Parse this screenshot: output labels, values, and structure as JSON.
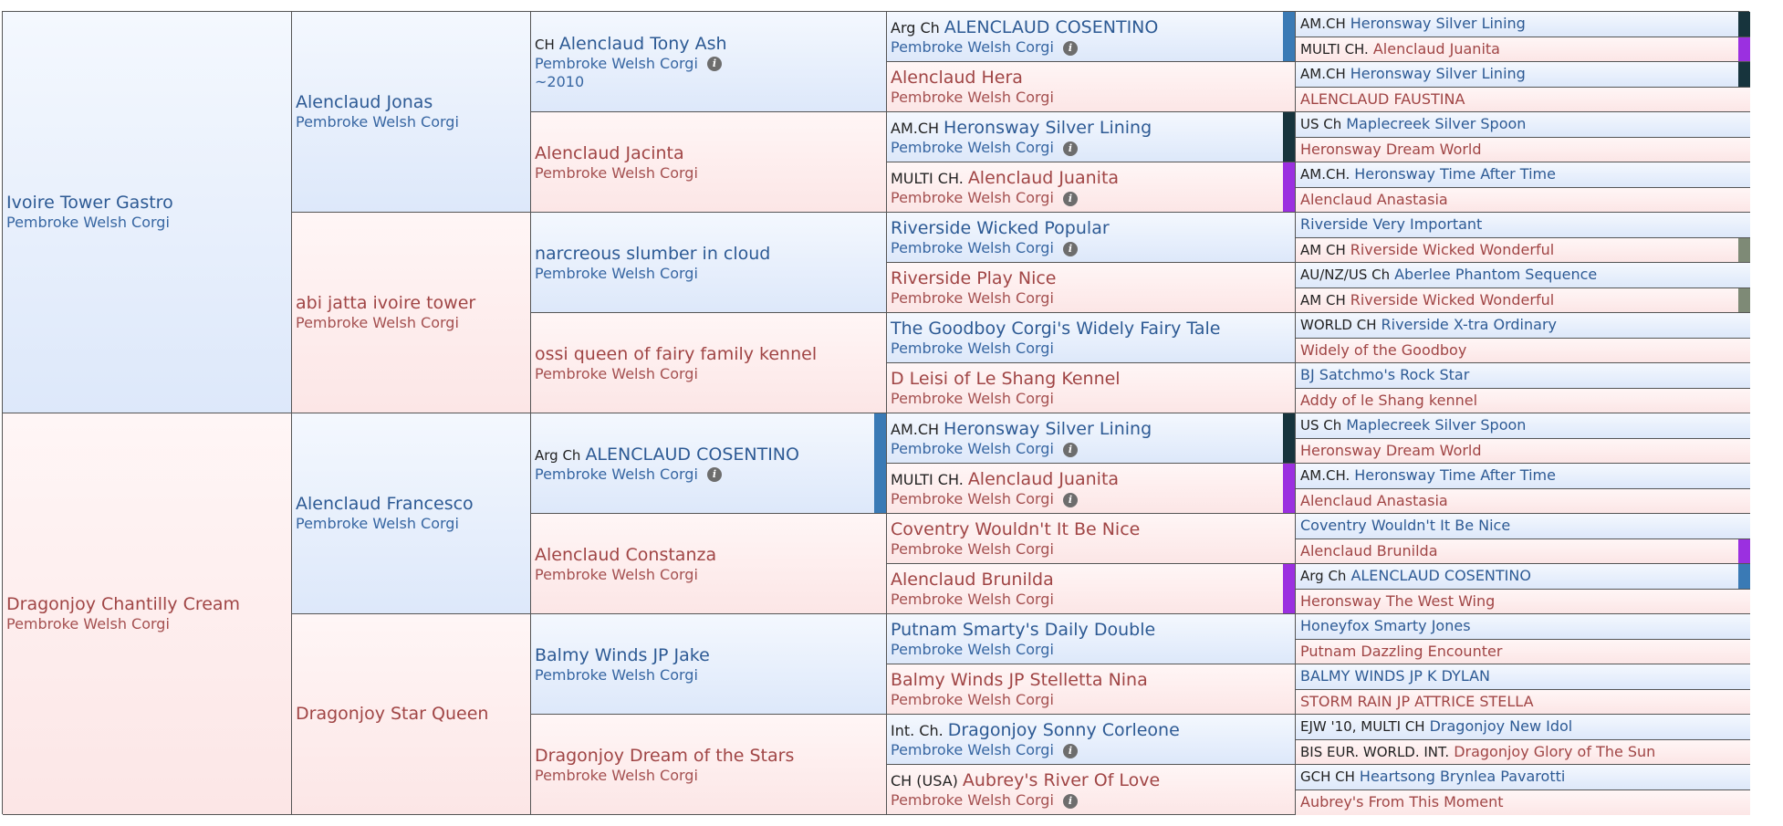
{
  "colors": {
    "male_text": "#2d5a94",
    "female_text": "#a04545",
    "male_bg": "#dde8fa",
    "female_bg": "#fce6e6",
    "mark_blue": "#3a7ab5",
    "mark_dark": "#17343d",
    "mark_purple": "#9b30e0",
    "mark_gray": "#7e8a76"
  },
  "gen1": [
    {
      "name": "Ivoire Tower Gastro",
      "breed": "Pembroke Welsh Corgi"
    },
    {
      "name": "Dragonjoy Chantilly Cream",
      "breed": "Pembroke Welsh Corgi"
    }
  ],
  "gen2": [
    {
      "name": "Alenclaud Jonas",
      "breed": "Pembroke Welsh Corgi"
    },
    {
      "name": "abi jatta ivoire tower",
      "breed": "Pembroke Welsh Corgi"
    },
    {
      "name": "Alenclaud Francesco",
      "breed": "Pembroke Welsh Corgi"
    },
    {
      "name": "Dragonjoy Star Queen",
      "breed": ""
    }
  ],
  "gen3": [
    {
      "title": "CH",
      "name": "Alenclaud Tony Ash",
      "breed": "Pembroke Welsh Corgi",
      "year": "~2010"
    },
    {
      "title": "",
      "name": "Alenclaud Jacinta",
      "breed": "Pembroke Welsh Corgi"
    },
    {
      "title": "",
      "name": "narcreous slumber in cloud",
      "breed": "Pembroke Welsh Corgi"
    },
    {
      "title": "",
      "name": "ossi queen of fairy family kennel",
      "breed": "Pembroke Welsh Corgi"
    },
    {
      "title": "Arg Ch",
      "name": "ALENCLAUD COSENTINO",
      "breed": "Pembroke Welsh Corgi"
    },
    {
      "title": "",
      "name": "Alenclaud Constanza",
      "breed": "Pembroke Welsh Corgi"
    },
    {
      "title": "",
      "name": "Balmy Winds JP Jake",
      "breed": "Pembroke Welsh Corgi"
    },
    {
      "title": "",
      "name": "Dragonjoy Dream of the Stars",
      "breed": "Pembroke Welsh Corgi"
    }
  ],
  "gen4": [
    {
      "title": "Arg Ch",
      "name": "ALENCLAUD COSENTINO",
      "breed": "Pembroke Welsh Corgi"
    },
    {
      "title": "",
      "name": "Alenclaud Hera",
      "breed": "Pembroke Welsh Corgi"
    },
    {
      "title": "AM.CH",
      "name": "Heronsway Silver Lining",
      "breed": "Pembroke Welsh Corgi"
    },
    {
      "title": "MULTI CH.",
      "name": "Alenclaud Juanita",
      "breed": "Pembroke Welsh Corgi"
    },
    {
      "title": "",
      "name": "Riverside Wicked Popular",
      "breed": "Pembroke Welsh Corgi"
    },
    {
      "title": "",
      "name": "Riverside Play Nice",
      "breed": "Pembroke Welsh Corgi"
    },
    {
      "title": "",
      "name": "The Goodboy Corgi's Widely Fairy Tale",
      "breed": "Pembroke Welsh Corgi"
    },
    {
      "title": "",
      "name": "D Leisi of Le Shang Kennel",
      "breed": "Pembroke Welsh Corgi"
    },
    {
      "title": "AM.CH",
      "name": "Heronsway Silver Lining",
      "breed": "Pembroke Welsh Corgi"
    },
    {
      "title": "MULTI CH.",
      "name": "Alenclaud Juanita",
      "breed": "Pembroke Welsh Corgi"
    },
    {
      "title": "",
      "name": "Coventry Wouldn't It Be Nice",
      "breed": "Pembroke Welsh Corgi"
    },
    {
      "title": "",
      "name": "Alenclaud Brunilda",
      "breed": "Pembroke Welsh Corgi"
    },
    {
      "title": "",
      "name": "Putnam Smarty's Daily Double",
      "breed": "Pembroke Welsh Corgi"
    },
    {
      "title": "",
      "name": "Balmy Winds JP Stelletta Nina",
      "breed": "Pembroke Welsh Corgi"
    },
    {
      "title": "Int. Ch.",
      "name": "Dragonjoy Sonny Corleone",
      "breed": "Pembroke Welsh Corgi"
    },
    {
      "title": "CH (USA)",
      "name": "Aubrey's River Of Love",
      "breed": "Pembroke Welsh Corgi"
    }
  ],
  "gen5": [
    {
      "title": "AM.CH",
      "name": "Heronsway Silver Lining"
    },
    {
      "title": "MULTI CH.",
      "name": "Alenclaud Juanita"
    },
    {
      "title": "AM.CH",
      "name": "Heronsway Silver Lining"
    },
    {
      "title": "",
      "name": "ALENCLAUD FAUSTINA"
    },
    {
      "title": "US Ch",
      "name": "Maplecreek Silver Spoon"
    },
    {
      "title": "",
      "name": "Heronsway Dream World"
    },
    {
      "title": "AM.CH.",
      "name": "Heronsway Time After Time"
    },
    {
      "title": "",
      "name": "Alenclaud Anastasia"
    },
    {
      "title": "",
      "name": "Riverside Very Important"
    },
    {
      "title": "AM CH",
      "name": "Riverside Wicked Wonderful"
    },
    {
      "title": "AU/NZ/US Ch",
      "name": "Aberlee Phantom Sequence"
    },
    {
      "title": "AM CH",
      "name": "Riverside Wicked Wonderful"
    },
    {
      "title": "WORLD CH",
      "name": "Riverside X-tra Ordinary"
    },
    {
      "title": "",
      "name": "Widely of the Goodboy"
    },
    {
      "title": "",
      "name": "BJ Satchmo's Rock Star"
    },
    {
      "title": "",
      "name": "Addy of le Shang kennel"
    },
    {
      "title": "US Ch",
      "name": "Maplecreek Silver Spoon"
    },
    {
      "title": "",
      "name": "Heronsway Dream World"
    },
    {
      "title": "AM.CH.",
      "name": "Heronsway Time After Time"
    },
    {
      "title": "",
      "name": "Alenclaud Anastasia"
    },
    {
      "title": "",
      "name": "Coventry Wouldn't It Be Nice"
    },
    {
      "title": "",
      "name": "Alenclaud Brunilda"
    },
    {
      "title": "Arg Ch",
      "name": "ALENCLAUD COSENTINO"
    },
    {
      "title": "",
      "name": "Heronsway The West Wing"
    },
    {
      "title": "",
      "name": "Honeyfox Smarty Jones"
    },
    {
      "title": "",
      "name": "Putnam Dazzling Encounter"
    },
    {
      "title": "",
      "name": "BALMY WINDS JP K DYLAN"
    },
    {
      "title": "",
      "name": "STORM RAIN JP ATTRICE STELLA"
    },
    {
      "title": "EJW '10, MULTI CH",
      "name": "Dragonjoy New Idol"
    },
    {
      "title": "BIS EUR. WORLD. INT.",
      "name": "Dragonjoy Glory of The Sun"
    },
    {
      "title": "GCH CH",
      "name": "Heartsong Brynlea Pavarotti"
    },
    {
      "title": "",
      "name": "Aubrey's From This Moment"
    }
  ]
}
